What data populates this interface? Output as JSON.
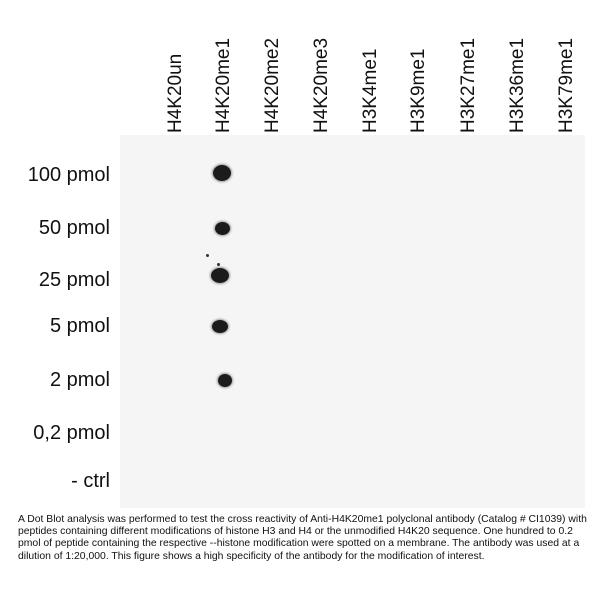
{
  "columns": [
    "H4K20un",
    "H4K20me1",
    "H4K20me2",
    "H4K20me3",
    "H3K4me1",
    "H3K9me1",
    "H3K27me1",
    "H3K36me1",
    "H3K79me1"
  ],
  "rows": [
    "100 pmol",
    "50 pmol",
    "25 pmol",
    "5 pmol",
    "2 pmol",
    "0,2 pmol",
    "- ctrl"
  ],
  "caption": "A Dot Blot analysis was performed to test the cross reactivity of Anti-H4K20me1 polyclonal antibody (Catalog # CI1039) with peptides containing different modifications of histone H3 and H4 or the unmodified H4K20 sequence. One hundred to 0.2 pmol of peptide containing the respective --histone modification were spotted on a membrane. The antibody was used at a dilution of 1:20,000. This figure shows a high specificity of the antibody for the modification of interest.",
  "colors": {
    "dot": "#1b1b1b",
    "membrane": "#f5f5f5"
  }
}
